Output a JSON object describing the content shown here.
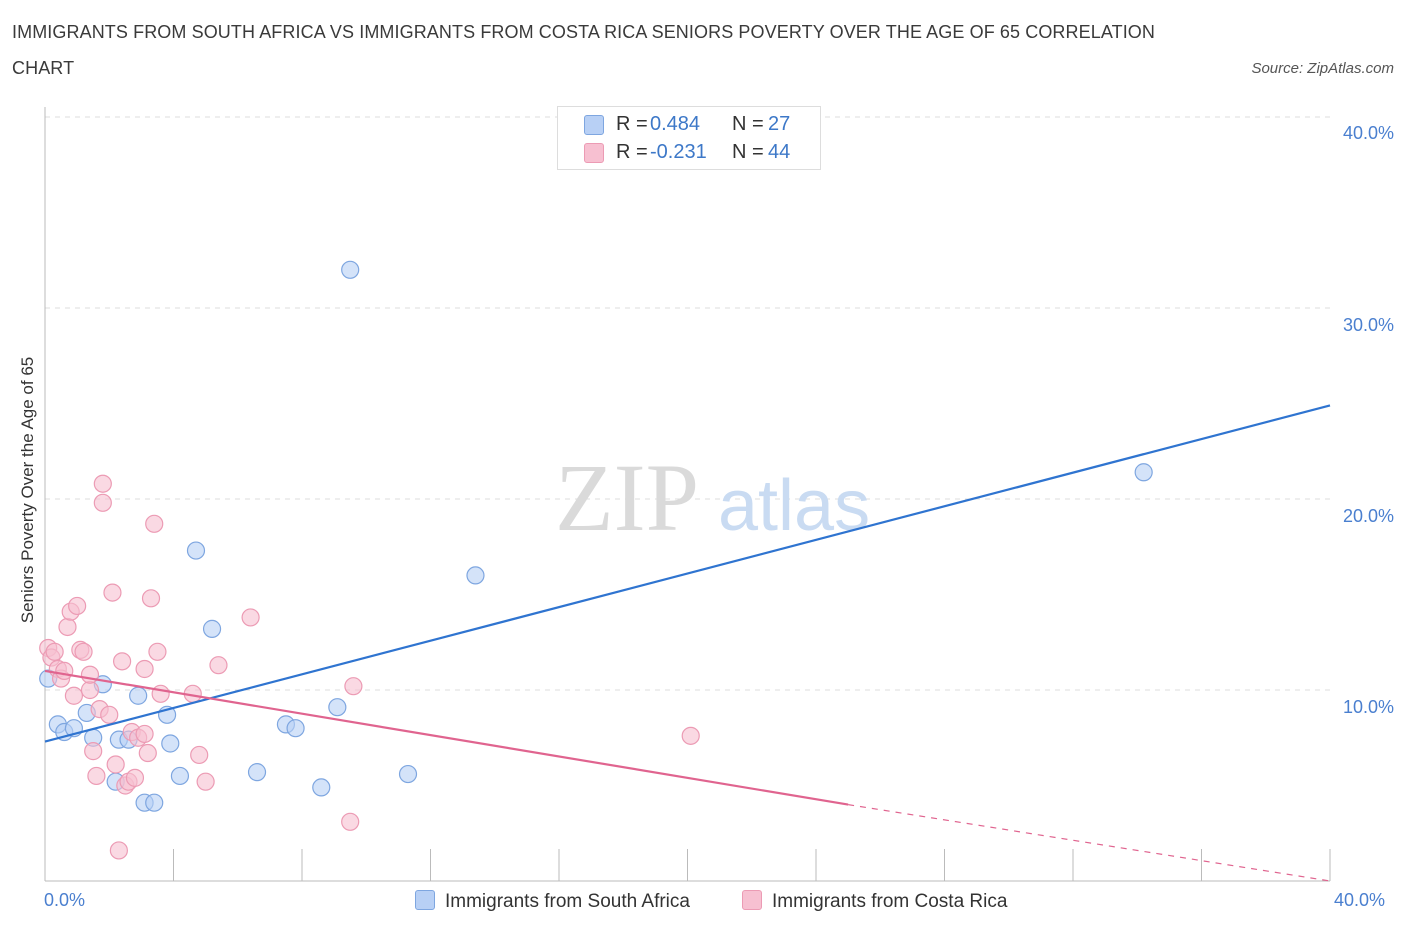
{
  "title": "IMMIGRANTS FROM SOUTH AFRICA VS IMMIGRANTS FROM COSTA RICA SENIORS POVERTY OVER THE AGE OF 65 CORRELATION CHART",
  "source": "Source: ZipAtlas.com",
  "watermark": {
    "zip": "ZIP",
    "atlas": "atlas"
  },
  "colors": {
    "blue_fill": "#b8d0f5",
    "blue_stroke": "#7ea6e0",
    "blue_line": "#2f74d0",
    "pink_fill": "#f7c0d1",
    "pink_stroke": "#ec9bb4",
    "pink_line": "#e0648f",
    "accent_text": "#3d78c8"
  },
  "legend": {
    "rows": [
      {
        "r_label": "R =",
        "r_value": "0.484",
        "n_label": "N =",
        "n_value": "27"
      },
      {
        "r_label": "R =",
        "r_value": "-0.231",
        "n_label": "N =",
        "n_value": "44"
      }
    ]
  },
  "chart_data": {
    "type": "scatter",
    "title": "IMMIGRANTS FROM SOUTH AFRICA VS IMMIGRANTS FROM COSTA RICA SENIORS POVERTY OVER THE AGE OF 65 CORRELATION CHART",
    "xlabel": "",
    "ylabel": "Seniors Poverty Over the Age of 65",
    "xlim": [
      0,
      40
    ],
    "ylim": [
      0,
      40
    ],
    "x_tick_labels": [
      "0.0%",
      "40.0%"
    ],
    "y_tick_values": [
      10,
      20,
      30,
      40
    ],
    "y_tick_labels": [
      "10.0%",
      "20.0%",
      "30.0%",
      "40.0%"
    ],
    "grid": true,
    "series": [
      {
        "name": "Immigrants from South Africa",
        "points": [
          [
            0.1,
            10.6
          ],
          [
            0.4,
            8.2
          ],
          [
            0.6,
            7.8
          ],
          [
            0.9,
            8.0
          ],
          [
            1.3,
            8.8
          ],
          [
            1.5,
            7.5
          ],
          [
            1.8,
            10.3
          ],
          [
            2.2,
            5.2
          ],
          [
            2.3,
            7.4
          ],
          [
            2.6,
            7.4
          ],
          [
            2.9,
            9.7
          ],
          [
            3.1,
            4.1
          ],
          [
            3.4,
            4.1
          ],
          [
            3.8,
            8.7
          ],
          [
            3.9,
            7.2
          ],
          [
            4.2,
            5.5
          ],
          [
            4.7,
            17.3
          ],
          [
            5.2,
            13.2
          ],
          [
            6.6,
            5.7
          ],
          [
            7.5,
            8.2
          ],
          [
            7.8,
            8.0
          ],
          [
            8.6,
            4.9
          ],
          [
            9.1,
            9.1
          ],
          [
            9.5,
            32.0
          ],
          [
            11.3,
            5.6
          ],
          [
            13.4,
            16.0
          ],
          [
            34.2,
            21.4
          ]
        ],
        "trend": {
          "x0": 0,
          "y0": 7.3,
          "x1": 40,
          "y1": 24.9
        }
      },
      {
        "name": "Immigrants from Costa Rica",
        "points": [
          [
            0.1,
            12.2
          ],
          [
            0.2,
            11.7
          ],
          [
            0.3,
            12.0
          ],
          [
            0.4,
            11.1
          ],
          [
            0.5,
            10.6
          ],
          [
            0.6,
            11.0
          ],
          [
            0.7,
            13.3
          ],
          [
            0.8,
            14.1
          ],
          [
            0.9,
            9.7
          ],
          [
            1.0,
            14.4
          ],
          [
            1.1,
            12.1
          ],
          [
            1.2,
            12.0
          ],
          [
            1.4,
            10.0
          ],
          [
            1.4,
            10.8
          ],
          [
            1.5,
            6.8
          ],
          [
            1.6,
            5.5
          ],
          [
            1.7,
            9.0
          ],
          [
            1.8,
            20.8
          ],
          [
            1.8,
            19.8
          ],
          [
            2.0,
            8.7
          ],
          [
            2.1,
            15.1
          ],
          [
            2.2,
            6.1
          ],
          [
            2.3,
            1.6
          ],
          [
            2.4,
            11.5
          ],
          [
            2.5,
            5.0
          ],
          [
            2.6,
            5.2
          ],
          [
            2.7,
            7.8
          ],
          [
            2.8,
            5.4
          ],
          [
            2.9,
            7.5
          ],
          [
            3.1,
            7.7
          ],
          [
            3.1,
            11.1
          ],
          [
            3.2,
            6.7
          ],
          [
            3.3,
            14.8
          ],
          [
            3.4,
            18.7
          ],
          [
            3.5,
            12.0
          ],
          [
            3.6,
            9.8
          ],
          [
            4.6,
            9.8
          ],
          [
            4.8,
            6.6
          ],
          [
            5.0,
            5.2
          ],
          [
            5.4,
            11.3
          ],
          [
            6.4,
            13.8
          ],
          [
            9.5,
            3.1
          ],
          [
            9.6,
            10.2
          ],
          [
            20.1,
            7.6
          ]
        ],
        "trend": {
          "x0": 0,
          "y0": 11.0,
          "x1": 25,
          "y1": 4.0,
          "dashed_to_x": 40,
          "dashed_to_y": 0.0
        }
      }
    ]
  },
  "axis_labels": {
    "x_min": "0.0%",
    "x_max": "40.0%"
  }
}
